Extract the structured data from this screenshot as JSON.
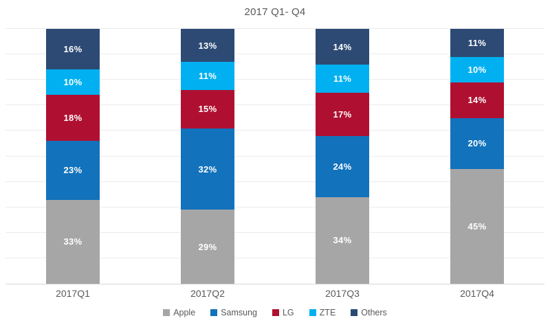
{
  "chart_data": {
    "type": "bar",
    "stacked": true,
    "title": "2017 Q1- Q4",
    "categories": [
      "2017Q1",
      "2017Q2",
      "2017Q3",
      "2017Q4"
    ],
    "series": [
      {
        "name": "Apple",
        "color": "#a6a6a6",
        "values": [
          33,
          29,
          34,
          45
        ]
      },
      {
        "name": "Samsung",
        "color": "#1272bc",
        "values": [
          23,
          32,
          24,
          20
        ]
      },
      {
        "name": "LG",
        "color": "#af1031",
        "values": [
          18,
          15,
          17,
          14
        ]
      },
      {
        "name": "ZTE",
        "color": "#00b0f0",
        "values": [
          10,
          11,
          11,
          10
        ]
      },
      {
        "name": "Others",
        "color": "#2c4a74",
        "values": [
          16,
          13,
          14,
          11
        ]
      }
    ],
    "value_format": "percent",
    "data_labels": [
      "33%",
      "23%",
      "18%",
      "10%",
      "16%",
      "29%",
      "32%",
      "15%",
      "11%",
      "13%",
      "34%",
      "24%",
      "17%",
      "11%",
      "14%",
      "45%",
      "20%",
      "14%",
      "10%",
      "11%"
    ],
    "ylim": [
      0,
      100
    ],
    "gridlines": "horizontal every 10%",
    "gridline_color": "#ececec",
    "axis_line_color": "#d6d6d6",
    "label_text_color": "#ffffff",
    "title_text_color": "#595959",
    "legend_position": "bottom"
  }
}
